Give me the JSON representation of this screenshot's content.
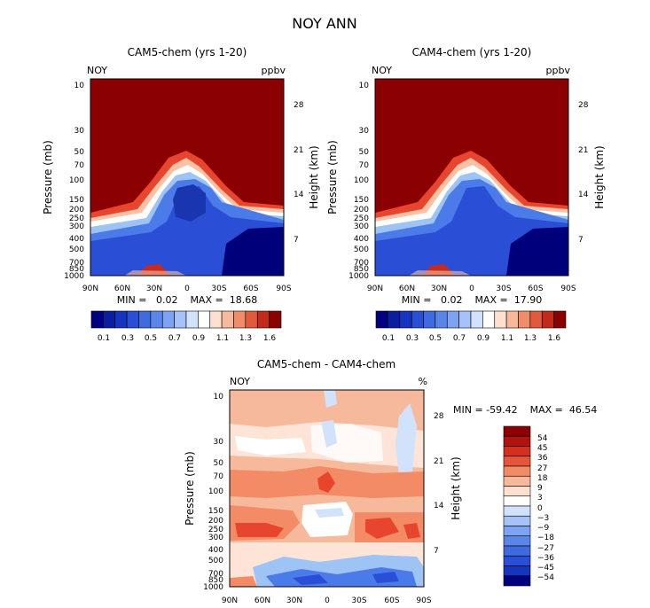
{
  "main_title": "NOY ANN",
  "colors": {
    "background": "#ffffff",
    "high_dark_red": "#8b0000",
    "low_dark_blue": "#000080"
  },
  "chart_data": [
    {
      "type": "heatmap",
      "title": "CAM5-chem (yrs 1-20)",
      "corner_left": "NOY",
      "corner_right": "ppbv",
      "xlabel": "",
      "ylabel": "Pressure (mb)",
      "y2label": "Height (km)",
      "x_ticks": [
        "90N",
        "60N",
        "30N",
        "0",
        "30S",
        "60S",
        "90S"
      ],
      "y_ticks": [
        "10",
        "30",
        "50",
        "70",
        "100",
        "150",
        "200",
        "250",
        "300",
        "400",
        "500",
        "700",
        "850",
        "1000"
      ],
      "y2_ticks": [
        "28",
        "21",
        "14",
        "7"
      ],
      "stats": "MIN =   0.02    MAX =  18.68",
      "min": 0.02,
      "max": 18.68,
      "colorbar_labels": [
        "0.1",
        "0.3",
        "0.5",
        "0.7",
        "0.9",
        "1.1",
        "1.3",
        "1.6"
      ]
    },
    {
      "type": "heatmap",
      "title": "CAM4-chem (yrs 1-20)",
      "corner_left": "NOY",
      "corner_right": "ppbv",
      "xlabel": "",
      "ylabel": "Pressure (mb)",
      "y2label": "Height (km)",
      "x_ticks": [
        "90N",
        "60N",
        "30N",
        "0",
        "30S",
        "60S",
        "90S"
      ],
      "y_ticks": [
        "10",
        "30",
        "50",
        "70",
        "100",
        "150",
        "200",
        "250",
        "300",
        "400",
        "500",
        "700",
        "850",
        "1000"
      ],
      "y2_ticks": [
        "28",
        "21",
        "14",
        "7"
      ],
      "stats": "MIN =   0.02    MAX =  17.90",
      "min": 0.02,
      "max": 17.9,
      "colorbar_labels": [
        "0.1",
        "0.3",
        "0.5",
        "0.7",
        "0.9",
        "1.1",
        "1.3",
        "1.6"
      ]
    },
    {
      "type": "heatmap",
      "title": "CAM5-chem - CAM4-chem",
      "corner_left": "NOY",
      "corner_right": "%",
      "xlabel": "",
      "ylabel": "Pressure (mb)",
      "y2label": "Height (km)",
      "x_ticks": [
        "90N",
        "60N",
        "30N",
        "0",
        "30S",
        "60S",
        "90S"
      ],
      "y_ticks": [
        "10",
        "30",
        "50",
        "70",
        "100",
        "150",
        "200",
        "250",
        "300",
        "400",
        "500",
        "700",
        "850",
        "1000"
      ],
      "y2_ticks": [
        "28",
        "21",
        "14",
        "7"
      ],
      "stats": "MIN = -59.42    MAX =  46.54",
      "min": -59.42,
      "max": 46.54,
      "colorbar_labels": [
        "54",
        "45",
        "36",
        "27",
        "18",
        "9",
        "3",
        "0",
        "−3",
        "−9",
        "−18",
        "−27",
        "−36",
        "−45",
        "−54"
      ]
    }
  ]
}
